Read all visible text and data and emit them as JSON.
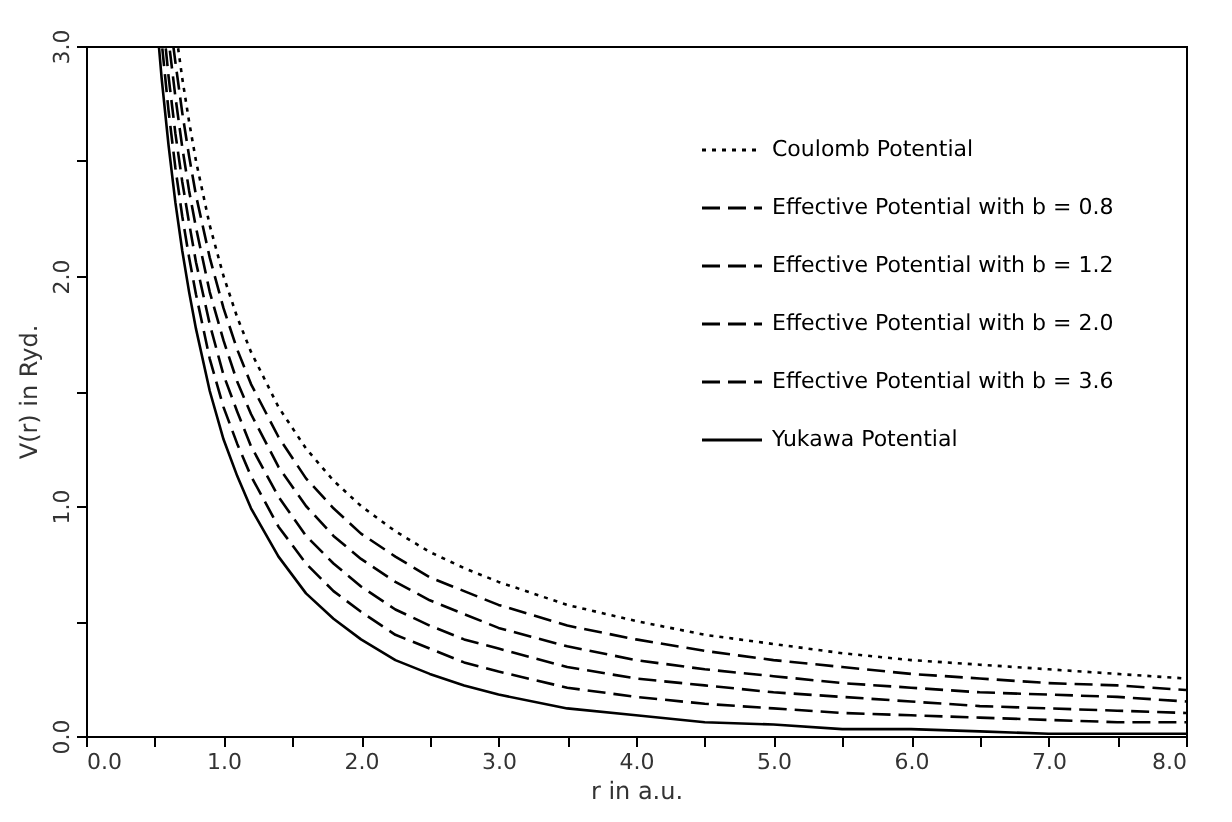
{
  "chart_data": {
    "type": "line",
    "xlabel": "r in a.u.",
    "ylabel": "V(r) in Ryd.",
    "xlim": [
      0,
      8
    ],
    "ylim": [
      0,
      3
    ],
    "xticks": [
      {
        "value": 0,
        "label": "0.0"
      },
      {
        "value": 0.5,
        "label": null
      },
      {
        "value": 1,
        "label": "1.0"
      },
      {
        "value": 1.5,
        "label": null
      },
      {
        "value": 2,
        "label": "2.0"
      },
      {
        "value": 2.5,
        "label": null
      },
      {
        "value": 3,
        "label": "3.0"
      },
      {
        "value": 3.5,
        "label": null
      },
      {
        "value": 4,
        "label": "4.0"
      },
      {
        "value": 4.5,
        "label": null
      },
      {
        "value": 5,
        "label": "5.0"
      },
      {
        "value": 5.5,
        "label": null
      },
      {
        "value": 6,
        "label": "6.0"
      },
      {
        "value": 6.5,
        "label": null
      },
      {
        "value": 7,
        "label": "7.0"
      },
      {
        "value": 7.5,
        "label": null
      },
      {
        "value": 8,
        "label": "8.0"
      }
    ],
    "yticks": [
      {
        "value": 0,
        "label": "0.0"
      },
      {
        "value": 0.5,
        "label": null
      },
      {
        "value": 1,
        "label": "1.0"
      },
      {
        "value": 1.5,
        "label": null
      },
      {
        "value": 2,
        "label": "2.0"
      },
      {
        "value": 2.5,
        "label": null
      },
      {
        "value": 3,
        "label": "3.0"
      }
    ],
    "grid": false,
    "legend": "top right",
    "series": [
      {
        "name": "Coulomb Potential",
        "color": "#000000",
        "line_style": "dotted",
        "x": [
          0.67,
          0.7,
          0.75,
          0.8,
          0.9,
          1,
          1.1,
          1.2,
          1.4,
          1.6,
          1.8,
          2,
          2.25,
          2.5,
          2.75,
          3,
          3.5,
          4,
          4.5,
          5,
          5.5,
          6,
          6.5,
          7,
          7.5,
          8
        ],
        "values": [
          2.99,
          2.86,
          2.67,
          2.5,
          2.22,
          2,
          1.82,
          1.67,
          1.43,
          1.25,
          1.11,
          1,
          0.89,
          0.8,
          0.73,
          0.67,
          0.57,
          0.5,
          0.44,
          0.4,
          0.36,
          0.33,
          0.31,
          0.29,
          0.27,
          0.25
        ]
      },
      {
        "name": "Effective Potential with b = 0.8",
        "color": "#000000",
        "line_style": "dashed",
        "x": [
          0.555,
          0.6,
          0.65,
          0.7,
          0.75,
          0.8,
          0.9,
          1,
          1.1,
          1.2,
          1.4,
          1.6,
          1.8,
          2,
          2.25,
          2.5,
          2.75,
          3,
          3.5,
          4,
          4.5,
          5,
          5.5,
          6,
          6.5,
          7,
          7.5,
          8
        ],
        "values": [
          2.99,
          2.72,
          2.47,
          2.26,
          2.08,
          1.92,
          1.64,
          1.43,
          1.27,
          1.13,
          0.91,
          0.75,
          0.63,
          0.54,
          0.44,
          0.38,
          0.32,
          0.28,
          0.21,
          0.17,
          0.14,
          0.12,
          0.1,
          0.09,
          0.08,
          0.07,
          0.06,
          0.06
        ]
      },
      {
        "name": "Effective Potential with b = 1.2",
        "color": "#000000",
        "line_style": "dashed",
        "x": [
          0.58,
          0.6,
          0.65,
          0.7,
          0.75,
          0.8,
          0.9,
          1,
          1.1,
          1.2,
          1.4,
          1.6,
          1.8,
          2,
          2.25,
          2.5,
          2.75,
          3,
          3.5,
          4,
          4.5,
          5,
          5.5,
          6,
          6.5,
          7,
          7.5,
          8
        ],
        "values": [
          2.99,
          2.87,
          2.62,
          2.41,
          2.23,
          2.06,
          1.79,
          1.57,
          1.41,
          1.26,
          1.04,
          0.87,
          0.75,
          0.65,
          0.55,
          0.48,
          0.42,
          0.38,
          0.3,
          0.25,
          0.22,
          0.19,
          0.17,
          0.15,
          0.13,
          0.12,
          0.11,
          0.1
        ]
      },
      {
        "name": "Effective Potential with b = 2.0",
        "color": "#000000",
        "line_style": "dashed",
        "x": [
          0.61,
          0.65,
          0.7,
          0.75,
          0.8,
          0.9,
          1,
          1.1,
          1.2,
          1.4,
          1.6,
          1.8,
          2,
          2.25,
          2.5,
          2.75,
          3,
          3.5,
          4,
          4.5,
          5,
          5.5,
          6,
          6.5,
          7,
          7.5,
          8
        ],
        "values": [
          2.98,
          2.78,
          2.56,
          2.37,
          2.21,
          1.93,
          1.72,
          1.54,
          1.4,
          1.17,
          1,
          0.87,
          0.77,
          0.67,
          0.59,
          0.53,
          0.47,
          0.39,
          0.33,
          0.29,
          0.26,
          0.23,
          0.21,
          0.19,
          0.18,
          0.17,
          0.15
        ]
      },
      {
        "name": "Effective Potential with b = 3.6",
        "color": "#000000",
        "line_style": "dashed",
        "x": [
          0.635,
          0.65,
          0.7,
          0.75,
          0.8,
          0.9,
          1,
          1.1,
          1.2,
          1.4,
          1.6,
          1.8,
          2,
          2.25,
          2.5,
          2.75,
          3,
          3.5,
          4,
          4.5,
          5,
          5.5,
          6,
          6.5,
          7,
          7.5,
          8
        ],
        "values": [
          3.0,
          2.93,
          2.71,
          2.52,
          2.35,
          2.08,
          1.86,
          1.68,
          1.53,
          1.3,
          1.12,
          0.99,
          0.88,
          0.78,
          0.69,
          0.63,
          0.57,
          0.48,
          0.42,
          0.37,
          0.33,
          0.3,
          0.27,
          0.25,
          0.23,
          0.22,
          0.2
        ]
      },
      {
        "name": "Yukawa Potential",
        "color": "#000000",
        "line_style": "solid",
        "x": [
          0.53,
          0.55,
          0.6,
          0.65,
          0.7,
          0.75,
          0.8,
          0.9,
          1,
          1.1,
          1.2,
          1.4,
          1.6,
          1.8,
          2,
          2.25,
          2.5,
          2.75,
          3,
          3.5,
          4,
          4.5,
          5,
          5.5,
          6,
          6.5,
          7,
          7.5,
          8
        ],
        "values": [
          3.0,
          2.86,
          2.57,
          2.32,
          2.11,
          1.93,
          1.77,
          1.5,
          1.29,
          1.13,
          0.99,
          0.78,
          0.62,
          0.51,
          0.42,
          0.33,
          0.27,
          0.22,
          0.18,
          0.12,
          0.09,
          0.06,
          0.05,
          0.03,
          0.03,
          0.02,
          0.01,
          0.01,
          0.01
        ]
      }
    ]
  }
}
